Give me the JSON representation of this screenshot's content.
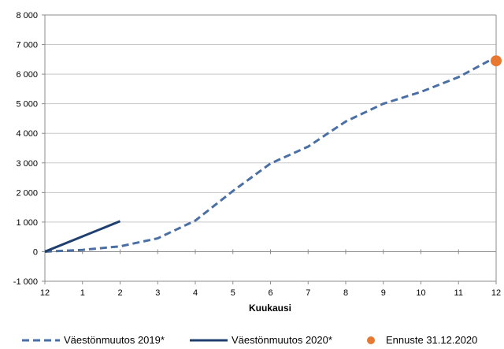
{
  "chart_data": {
    "type": "line",
    "title": "",
    "xlabel": "Kuukausi",
    "ylabel": "",
    "x_ticks": [
      "12",
      "1",
      "2",
      "3",
      "4",
      "5",
      "6",
      "7",
      "8",
      "9",
      "10",
      "11",
      "12"
    ],
    "ylim": [
      -1000,
      8000
    ],
    "y_ticks": [
      -1000,
      0,
      1000,
      2000,
      3000,
      4000,
      5000,
      6000,
      7000,
      8000
    ],
    "y_tick_labels": [
      "-1 000",
      "0",
      "1 000",
      "2 000",
      "3 000",
      "4 000",
      "5 000",
      "6 000",
      "7 000",
      "8 000"
    ],
    "grid": "horizontal",
    "legend_position": "bottom",
    "series": [
      {
        "name": "Väestönmuutos 2019*",
        "style": "dashed",
        "color": "#4a6fa5",
        "x": [
          0,
          1,
          2,
          3,
          4,
          5,
          6,
          7,
          8,
          9,
          10,
          11,
          12
        ],
        "values": [
          0,
          60,
          180,
          450,
          1050,
          2050,
          2980,
          3550,
          4400,
          5000,
          5400,
          5900,
          6580
        ]
      },
      {
        "name": "Väestönmuutos 2020*",
        "style": "solid",
        "color": "#1f3f6e",
        "x": [
          0,
          2
        ],
        "values": [
          0,
          1030
        ]
      },
      {
        "name": "Ennuste 31.12.2020",
        "style": "marker",
        "color": "#e8782f",
        "x": [
          12
        ],
        "values": [
          6450
        ]
      }
    ]
  }
}
